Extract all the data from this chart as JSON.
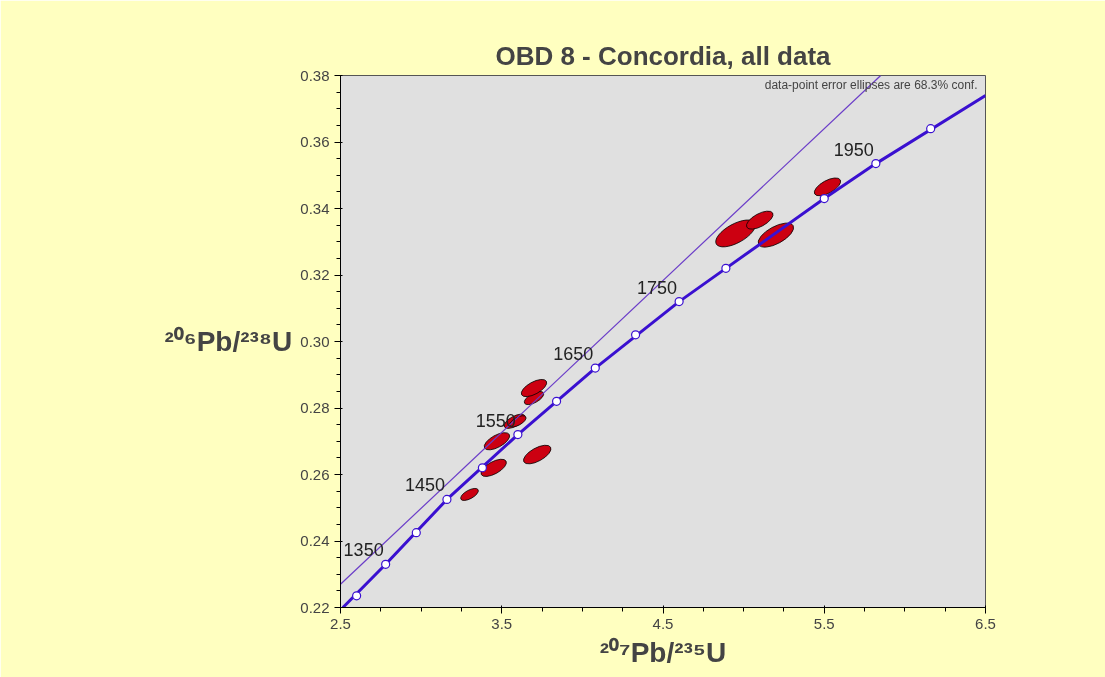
{
  "chart_data": {
    "type": "scatter",
    "title": "OBD 8 - Concordia, all data",
    "xlabel": "²⁰⁷Pb/²³⁵U",
    "ylabel": "²⁰⁶Pb/²³⁸U",
    "xlim": [
      2.5,
      6.5
    ],
    "xticks": [
      2.5,
      3.5,
      4.5,
      5.5,
      6.5
    ],
    "ylim": [
      0.22,
      0.38
    ],
    "yticks": [
      0.22,
      0.24,
      0.26,
      0.28,
      {
        "value": 0.3,
        "label": "0.30"
      },
      0.32,
      0.34,
      0.36,
      0.38
    ],
    "grid": false,
    "series": [
      {
        "type": "bubble",
        "color": "#cc0011",
        "x": [
          3.3,
          3.45,
          3.47,
          3.58,
          3.6,
          3.7,
          3.7,
          3.72,
          4.95,
          5.2,
          5.1,
          5.52
        ],
        "values": [
          0.254,
          0.262,
          0.27,
          0.276,
          0.276,
          0.283,
          0.286,
          0.266,
          0.3325,
          0.332,
          0.3365,
          0.3465
        ],
        "sizes": [
          0.2,
          0.41,
          0.41,
          0.28,
          0.17,
          0.24,
          0.41,
          0.48,
          1,
          0.8,
          0.45,
          0.44
        ]
      },
      {
        "type": "line",
        "color": "#3a10d0",
        "x": [
          2.515,
          2.78,
          3.16,
          3.6,
          4.08,
          4.6,
          4.89,
          5.5,
          5.82,
          6.5
        ],
        "values": [
          0.22,
          0.233,
          0.2525,
          0.272,
          0.292,
          0.312,
          0.322,
          0.343,
          0.3535,
          0.374
        ]
      },
      {
        "type": "line",
        "color": "#6a3cc8",
        "x": [
          2.5,
          5.85
        ],
        "values": [
          0.227,
          0.38
        ]
      },
      {
        "marker": "circle",
        "color": "#3a10d0",
        "x": [
          2.6,
          2.78,
          2.97,
          3.16,
          3.38,
          3.6,
          3.84,
          4.08,
          4.33,
          4.6,
          4.89,
          5.5,
          5.82,
          6.16
        ],
        "values": [
          0.2235,
          0.233,
          0.2425,
          0.2525,
          0.262,
          0.272,
          0.282,
          0.292,
          0.302,
          0.312,
          0.322,
          0.343,
          0.3535,
          0.364
        ]
      }
    ],
    "annotations": [
      {
        "text": "1350",
        "x": 2.78,
        "y": 0.233
      },
      {
        "text": "1450",
        "x": 3.16,
        "y": 0.2525
      },
      {
        "text": "1550",
        "x": 3.6,
        "y": 0.272
      },
      {
        "text": "1650",
        "x": 4.08,
        "y": 0.292
      },
      {
        "text": "1750",
        "x": 4.6,
        "y": 0.312
      },
      {
        "text": "1950",
        "x": 5.82,
        "y": 0.3535
      },
      "data-point error ellipses are 68.3% conf."
    ]
  }
}
